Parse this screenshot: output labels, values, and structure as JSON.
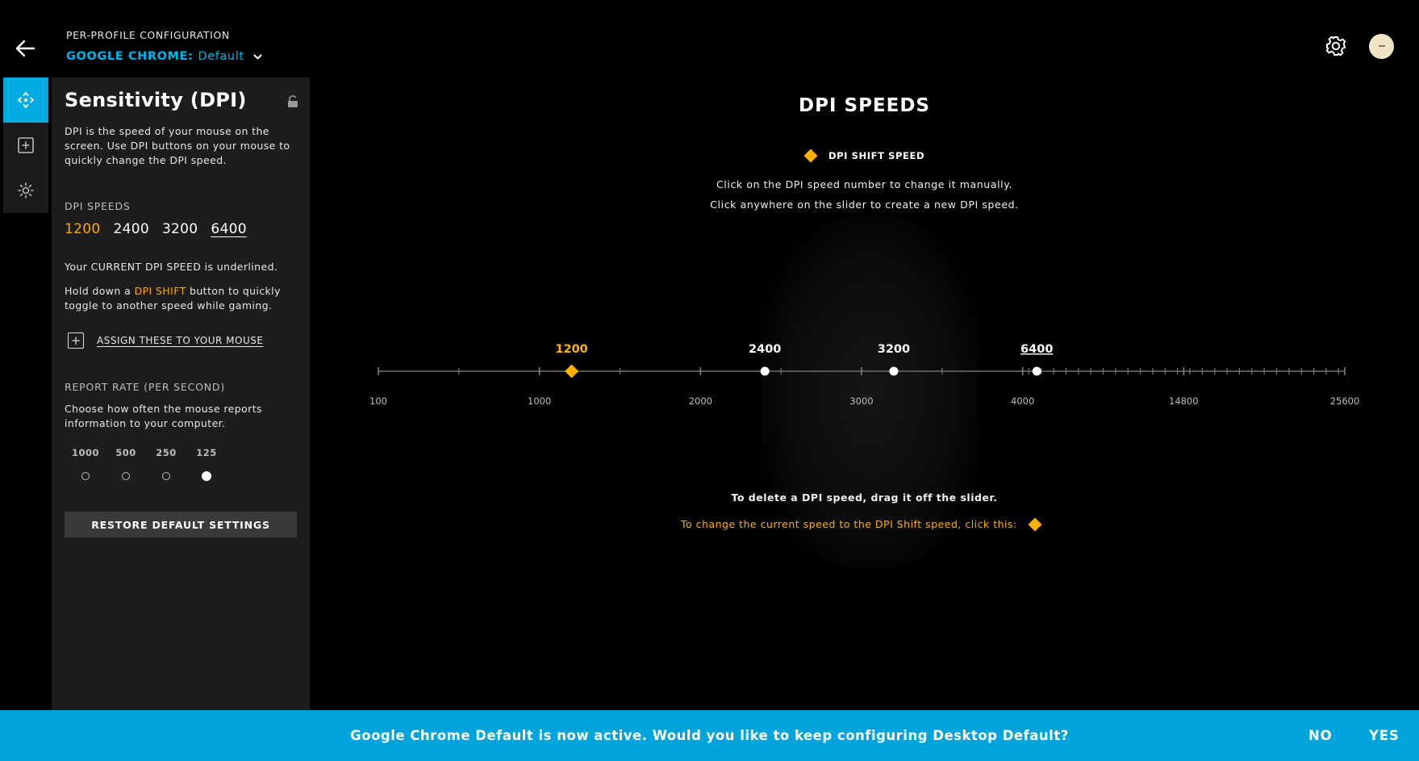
{
  "header": {
    "config_label": "PER-PROFILE CONFIGURATION",
    "app_name": "GOOGLE CHROME:",
    "profile_name": "Default",
    "avatar_text": ""
  },
  "sidebar": {
    "icons": [
      "move-icon",
      "plus-square-icon",
      "lighting-icon"
    ]
  },
  "panel": {
    "title": "Sensitivity (DPI)",
    "description": "DPI is the speed of your mouse on the screen. Use DPI buttons on your mouse to quickly change the DPI speed.",
    "dpi_speeds_label": "DPI SPEEDS",
    "dpi_values": [
      "1200",
      "2400",
      "3200",
      "6400"
    ],
    "shift_speed": "1200",
    "current_speed": "6400",
    "current_note": "Your CURRENT DPI SPEED is underlined.",
    "hold_prefix": "Hold down a ",
    "hold_highlight": "DPI SHIFT",
    "hold_suffix": " button to quickly toggle to another speed while gaming.",
    "assign_label": "ASSIGN THESE TO YOUR MOUSE",
    "report_rate_label": "REPORT RATE (PER SECOND)",
    "report_rate_desc": "Choose how often the mouse reports information to your computer.",
    "report_rates": [
      "1000",
      "500",
      "250",
      "125"
    ],
    "report_rate_selected": "125",
    "restore_label": "RESTORE DEFAULT SETTINGS"
  },
  "main": {
    "title": "DPI SPEEDS",
    "legend_label": "DPI SHIFT SPEED",
    "instruction_1": "Click on the DPI speed number to change it manually.",
    "instruction_2": "Click anywhere on the slider to create a new DPI speed.",
    "delete_note": "To delete a DPI speed, drag it off the slider.",
    "shift_note": "To change the current speed to the DPI Shift speed, click this:"
  },
  "chart_data": {
    "type": "scatter",
    "title": "DPI SPEEDS",
    "axis_ticks": [
      "100",
      "1000",
      "2000",
      "3000",
      "4000",
      "14800",
      "25600"
    ],
    "axis_minor_tick_count": 30,
    "points": [
      {
        "value": 1200,
        "label": "1200",
        "kind": "shift"
      },
      {
        "value": 2400,
        "label": "2400",
        "kind": "normal"
      },
      {
        "value": 3200,
        "label": "3200",
        "kind": "normal"
      },
      {
        "value": 6400,
        "label": "6400",
        "kind": "current"
      }
    ],
    "colors": {
      "shift": "#ffb000",
      "normal": "#ffffff",
      "track": "#555555"
    }
  },
  "banner": {
    "message": "Google Chrome Default is now active. Would you like to keep configuring Desktop Default?",
    "no_label": "NO",
    "yes_label": "YES",
    "color": "#00a4dd"
  }
}
